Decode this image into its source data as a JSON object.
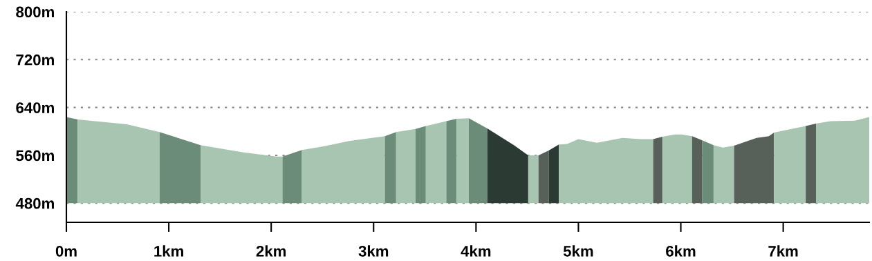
{
  "chart_data": {
    "type": "area",
    "xlim": [
      0,
      7.84
    ],
    "xticks": [
      {
        "value": 0,
        "label": "0m"
      },
      {
        "value": 1,
        "label": "1km"
      },
      {
        "value": 2,
        "label": "2km"
      },
      {
        "value": 3,
        "label": "3km"
      },
      {
        "value": 4,
        "label": "4km"
      },
      {
        "value": 5,
        "label": "5km"
      },
      {
        "value": 6,
        "label": "6km"
      },
      {
        "value": 7,
        "label": "7km"
      }
    ],
    "ylim": [
      448,
      800
    ],
    "yticks": [
      {
        "value": 480,
        "label": "480m"
      },
      {
        "value": 560,
        "label": "560m"
      },
      {
        "value": 640,
        "label": "640m"
      },
      {
        "value": 720,
        "label": "720m"
      },
      {
        "value": 800,
        "label": "800m"
      }
    ],
    "grid": "y",
    "legend": false,
    "series": [
      {
        "color": "#6a8c78",
        "x": [
          0,
          0.11
        ],
        "values": [
          624,
          620
        ]
      },
      {
        "color": "#a8c5b2",
        "x": [
          0.11,
          0.59,
          0.91
        ],
        "values": [
          620,
          612,
          599
        ]
      },
      {
        "color": "#6a8c78",
        "x": [
          0.91,
          1.31
        ],
        "values": [
          599,
          577
        ]
      },
      {
        "color": "#a8c5b2",
        "x": [
          1.31,
          1.72,
          2.05,
          2.11
        ],
        "values": [
          577,
          565,
          558,
          558
        ]
      },
      {
        "color": "#6a8c78",
        "x": [
          2.11,
          2.3
        ],
        "values": [
          558,
          569
        ]
      },
      {
        "color": "#a8c5b2",
        "x": [
          2.3,
          2.51,
          2.76,
          3.11
        ],
        "values": [
          569,
          575,
          584,
          592
        ]
      },
      {
        "color": "#6a8c78",
        "x": [
          3.11,
          3.22
        ],
        "values": [
          592,
          599
        ]
      },
      {
        "color": "#a8c5b2",
        "x": [
          3.22,
          3.41
        ],
        "values": [
          599,
          604
        ]
      },
      {
        "color": "#6a8c78",
        "x": [
          3.41,
          3.51
        ],
        "values": [
          604,
          609
        ]
      },
      {
        "color": "#a8c5b2",
        "x": [
          3.51,
          3.71
        ],
        "values": [
          609,
          617
        ]
      },
      {
        "color": "#6a8c78",
        "x": [
          3.71,
          3.81
        ],
        "values": [
          617,
          621
        ]
      },
      {
        "color": "#a8c5b2",
        "x": [
          3.81,
          3.93
        ],
        "values": [
          621,
          622
        ]
      },
      {
        "color": "#6a8c78",
        "x": [
          3.93,
          4.11
        ],
        "values": [
          622,
          605
        ]
      },
      {
        "color": "#2b3a33",
        "x": [
          4.11,
          4.37,
          4.51
        ],
        "values": [
          605,
          577,
          560
        ]
      },
      {
        "color": "#a8c5b2",
        "x": [
          4.51,
          4.61
        ],
        "values": [
          560,
          560
        ]
      },
      {
        "color": "#576059",
        "x": [
          4.61,
          4.71
        ],
        "values": [
          560,
          568
        ]
      },
      {
        "color": "#2b3a33",
        "x": [
          4.71,
          4.81
        ],
        "values": [
          568,
          578
        ]
      },
      {
        "color": "#a8c5b2",
        "x": [
          4.81,
          4.89,
          5.0,
          5.18,
          5.43,
          5.61,
          5.73
        ],
        "values": [
          578,
          579,
          587,
          581,
          589,
          587,
          587
        ]
      },
      {
        "color": "#576059",
        "x": [
          5.73,
          5.82
        ],
        "values": [
          587,
          591
        ]
      },
      {
        "color": "#a8c5b2",
        "x": [
          5.82,
          5.94,
          6.01,
          6.11
        ],
        "values": [
          591,
          595,
          595,
          592
        ]
      },
      {
        "color": "#576059",
        "x": [
          6.11,
          6.21
        ],
        "values": [
          592,
          585
        ]
      },
      {
        "color": "#6a8c78",
        "x": [
          6.21,
          6.32
        ],
        "values": [
          585,
          577
        ]
      },
      {
        "color": "#a8c5b2",
        "x": [
          6.32,
          6.41,
          6.52
        ],
        "values": [
          577,
          573,
          576
        ]
      },
      {
        "color": "#576059",
        "x": [
          6.52,
          6.74,
          6.86,
          6.91
        ],
        "values": [
          576,
          589,
          592,
          598
        ]
      },
      {
        "color": "#a8c5b2",
        "x": [
          6.91,
          7.22
        ],
        "values": [
          598,
          609
        ]
      },
      {
        "color": "#576059",
        "x": [
          7.22,
          7.32
        ],
        "values": [
          609,
          613
        ]
      },
      {
        "color": "#a8c5b2",
        "x": [
          7.32,
          7.46,
          7.7,
          7.84
        ],
        "values": [
          613,
          617,
          618,
          624
        ]
      }
    ]
  }
}
